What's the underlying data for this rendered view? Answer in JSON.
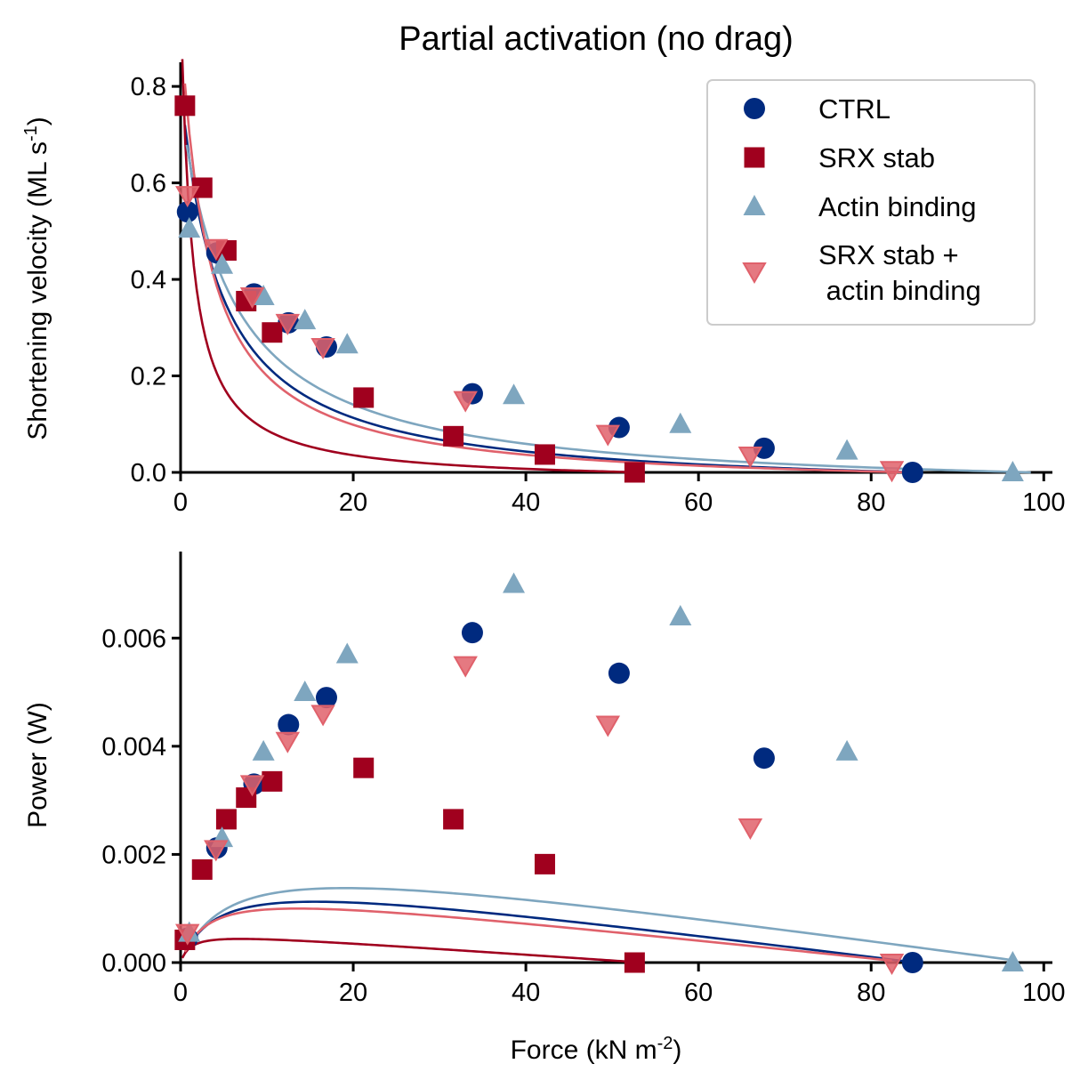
{
  "chart_data": [
    {
      "type": "scatter",
      "title": "Partial activation (no drag)",
      "xlabel": "",
      "ylabel": "Shortening velocity (ML s",
      "ylabel_sup": "-1",
      "ylabel_close": ")",
      "xlim": [
        0,
        101
      ],
      "ylim": [
        0,
        0.85
      ],
      "xticks": [
        "0",
        "20",
        "40",
        "60",
        "80",
        "100"
      ],
      "xtick_values": [
        0,
        20,
        40,
        60,
        80,
        100
      ],
      "yticks": [
        "0.0",
        "0.2",
        "0.4",
        "0.6",
        "0.8"
      ],
      "ytick_values": [
        0,
        0.2,
        0.4,
        0.6,
        0.8
      ],
      "grid": false,
      "legend_position": "top-right",
      "series": [
        {
          "name": "CTRL",
          "marker": "circle",
          "color": "#002a7f",
          "x": [
            0.8,
            4.2,
            8.5,
            12.5,
            16.9,
            33.8,
            50.8,
            67.6,
            84.8
          ],
          "y": [
            0.54,
            0.455,
            0.37,
            0.31,
            0.26,
            0.163,
            0.093,
            0.05,
            0.0
          ],
          "fit": {
            "a": 4.5,
            "b": 0.0425,
            "f0": 85.2
          }
        },
        {
          "name": "SRX stab",
          "marker": "square",
          "color": "#a0001e",
          "x": [
            0.5,
            2.5,
            5.3,
            7.6,
            10.6,
            21.2,
            31.6,
            42.2,
            52.6
          ],
          "y": [
            0.76,
            0.59,
            0.46,
            0.355,
            0.29,
            0.155,
            0.075,
            0.037,
            0.0
          ],
          "fit": {
            "a": 1.2,
            "b": 0.0225,
            "f0": 53.5
          }
        },
        {
          "name": "Actin binding",
          "marker": "triangle-up",
          "color": "#7ea6bf",
          "x": [
            1.0,
            4.8,
            9.6,
            14.4,
            19.3,
            38.6,
            57.9,
            77.2,
            96.4
          ],
          "y": [
            0.505,
            0.43,
            0.365,
            0.315,
            0.265,
            0.16,
            0.1,
            0.045,
            0.0
          ],
          "fit": {
            "a": 6.0,
            "b": 0.0465,
            "f0": 98.5
          }
        },
        {
          "name": "SRX stab +\n actin binding",
          "marker": "triangle-down",
          "color": "#e0616b",
          "x": [
            0.8,
            4.1,
            8.3,
            12.4,
            16.5,
            33.0,
            49.5,
            66.0,
            82.4
          ],
          "y": [
            0.575,
            0.465,
            0.365,
            0.31,
            0.26,
            0.15,
            0.08,
            0.035,
            0.005
          ],
          "fit": {
            "a": 3.2,
            "b": 0.0355,
            "f0": 84.5
          }
        }
      ]
    },
    {
      "type": "scatter",
      "title": "",
      "xlabel": "Force (kN m",
      "xlabel_sup": "-2",
      "xlabel_close": ")",
      "ylabel": "Power (W)",
      "xlim": [
        0,
        101
      ],
      "ylim": [
        0,
        0.0076
      ],
      "xticks": [
        "0",
        "20",
        "40",
        "60",
        "80",
        "100"
      ],
      "xtick_values": [
        0,
        20,
        40,
        60,
        80,
        100
      ],
      "yticks": [
        "0.000",
        "0.002",
        "0.004",
        "0.006"
      ],
      "ytick_values": [
        0,
        0.002,
        0.004,
        0.006
      ],
      "grid": false,
      "series": [
        {
          "name": "CTRL",
          "marker": "circle",
          "color": "#002a7f",
          "x": [
            0.8,
            4.2,
            8.5,
            12.5,
            16.9,
            33.8,
            50.8,
            67.6,
            84.8
          ],
          "y": [
            0.00045,
            0.00212,
            0.0033,
            0.0044,
            0.0049,
            0.0061,
            0.00535,
            0.00378,
            0.0
          ]
        },
        {
          "name": "SRX stab",
          "marker": "square",
          "color": "#a0001e",
          "x": [
            0.5,
            2.5,
            5.3,
            7.6,
            10.6,
            21.2,
            31.6,
            42.2,
            52.6
          ],
          "y": [
            0.00042,
            0.00172,
            0.00265,
            0.00305,
            0.00335,
            0.0036,
            0.00265,
            0.00182,
            0.0
          ]
        },
        {
          "name": "Actin binding",
          "marker": "triangle-up",
          "color": "#7ea6bf",
          "x": [
            1.0,
            4.8,
            9.6,
            14.4,
            19.3,
            38.6,
            57.9,
            77.2,
            96.4
          ],
          "y": [
            0.00055,
            0.0023,
            0.0039,
            0.005,
            0.0057,
            0.007,
            0.0064,
            0.0039,
            0.0
          ]
        },
        {
          "name": "SRX stab + actin binding",
          "marker": "triangle-down",
          "color": "#e0616b",
          "x": [
            0.8,
            4.1,
            8.3,
            12.4,
            16.5,
            33.0,
            49.5,
            66.0,
            82.4
          ],
          "y": [
            0.00055,
            0.0021,
            0.0033,
            0.0041,
            0.0046,
            0.0055,
            0.0044,
            0.0025,
            0.0
          ]
        }
      ]
    }
  ]
}
